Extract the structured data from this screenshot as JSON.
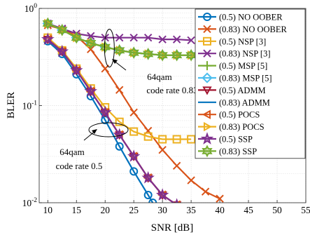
{
  "chart_data": {
    "type": "line",
    "xlabel": "SNR [dB]",
    "ylabel": "BLER",
    "xlim": [
      8.5,
      55
    ],
    "ylim": [
      0.01,
      1
    ],
    "yscale": "log",
    "x_ticks": [
      10,
      15,
      20,
      25,
      30,
      35,
      40,
      45,
      50,
      55
    ],
    "y_ticks": [
      {
        "value": 1,
        "base": "10",
        "exp": "0"
      },
      {
        "value": 0.1,
        "base": "10",
        "exp": "-1"
      },
      {
        "value": 0.01,
        "base": "10",
        "exp": "-2"
      }
    ],
    "grid": true,
    "legend_position": "top-right",
    "annotations": [
      {
        "lines": [
          "64qam",
          "code rate 0.83"
        ],
        "ellipse_center": [
          20.5,
          0.39
        ],
        "text_at": [
          26.5,
          0.16
        ]
      },
      {
        "lines": [
          "64qam",
          "code rate 0.5"
        ],
        "ellipse_center": [
          20.5,
          0.066
        ],
        "text_at": [
          15,
          0.029
        ]
      }
    ],
    "series": [
      {
        "name": "(0.5) NO OOBER",
        "color": "#0072BD",
        "marker": "circle",
        "x": [
          10,
          12.5,
          15,
          17.5,
          20,
          22.5,
          25,
          27.5,
          28.3
        ],
        "y": [
          0.46,
          0.34,
          0.21,
          0.125,
          0.071,
          0.038,
          0.021,
          0.012,
          0.01
        ]
      },
      {
        "name": "(0.83) NO OOBER",
        "color": "#D95319",
        "marker": "x",
        "x": [
          10,
          12.5,
          15,
          17.5,
          20,
          22.5,
          25,
          27.5,
          30,
          32.5,
          35,
          37.5,
          40
        ],
        "y": [
          0.67,
          0.61,
          0.52,
          0.38,
          0.24,
          0.145,
          0.085,
          0.055,
          0.035,
          0.024,
          0.017,
          0.013,
          0.011
        ]
      },
      {
        "name": "(0.5) NSP [3]",
        "color": "#EDB120",
        "marker": "square",
        "x": [
          10,
          12.5,
          15,
          17.5,
          20,
          22.5,
          25,
          27.5,
          30,
          32.5,
          35
        ],
        "y": [
          0.5,
          0.37,
          0.24,
          0.15,
          0.096,
          0.068,
          0.054,
          0.048,
          0.045,
          0.045,
          0.045
        ]
      },
      {
        "name": "(0.83) NSP [3]",
        "color": "#7E2F8E",
        "marker": "x",
        "x": [
          10,
          12.5,
          15,
          17.5,
          20,
          22.5,
          25,
          27.5,
          30,
          32.5,
          35
        ],
        "y": [
          0.7,
          0.62,
          0.55,
          0.52,
          0.5,
          0.5,
          0.5,
          0.5,
          0.48,
          0.48,
          0.47
        ]
      },
      {
        "name": "(0.5) MSP [5]",
        "color": "#77AC30",
        "marker": "plus",
        "x": [
          10,
          12.5,
          15,
          17.5,
          20,
          22.5,
          25,
          27.5,
          30,
          32.5,
          35
        ],
        "y": [
          0.7,
          0.6,
          0.5,
          0.44,
          0.4,
          0.37,
          0.35,
          0.34,
          0.33,
          0.33,
          0.33
        ]
      },
      {
        "name": "(0.83) MSP [5]",
        "color": "#4DBEEE",
        "marker": "diamond",
        "x": [
          10,
          12.5,
          15,
          17.5,
          20,
          22.5,
          25,
          27.5,
          30,
          32.5,
          35
        ],
        "y": [
          0.7,
          0.6,
          0.5,
          0.44,
          0.4,
          0.37,
          0.35,
          0.34,
          0.33,
          0.33,
          0.33
        ]
      },
      {
        "name": "(0.5) ADMM",
        "color": "#A2142F",
        "marker": "triangle-down",
        "x": [
          10,
          12.5,
          15,
          17.5,
          20,
          22.5,
          25,
          27.5,
          30,
          32.5
        ],
        "y": [
          0.48,
          0.36,
          0.23,
          0.14,
          0.085,
          0.05,
          0.03,
          0.018,
          0.012,
          0.0095
        ]
      },
      {
        "name": "(0.83) ADMM",
        "color": "#0072BD",
        "marker": "none",
        "x": [
          10,
          12.5,
          15,
          17.5,
          20,
          22.5,
          25,
          27.5,
          30,
          32.5,
          35
        ],
        "y": [
          0.7,
          0.6,
          0.5,
          0.44,
          0.4,
          0.37,
          0.35,
          0.34,
          0.33,
          0.33,
          0.33
        ]
      },
      {
        "name": "(0.5) POCS",
        "color": "#D95319",
        "marker": "triangle-left",
        "x": [
          10,
          12.5,
          15,
          17.5,
          20,
          22.5,
          25,
          27.5,
          30,
          32.5
        ],
        "y": [
          0.48,
          0.36,
          0.23,
          0.14,
          0.085,
          0.05,
          0.03,
          0.018,
          0.012,
          0.0095
        ]
      },
      {
        "name": "(0.83) POCS",
        "color": "#EDB120",
        "marker": "triangle-right",
        "x": [
          10,
          12.5,
          15,
          17.5,
          20,
          22.5,
          25,
          27.5,
          30,
          32.5,
          35
        ],
        "y": [
          0.7,
          0.6,
          0.5,
          0.44,
          0.4,
          0.37,
          0.35,
          0.34,
          0.33,
          0.33,
          0.33
        ]
      },
      {
        "name": "(0.5) SSP",
        "color": "#7E2F8E",
        "marker": "star",
        "x": [
          10,
          12.5,
          15,
          17.5,
          20,
          22.5,
          25,
          27.5,
          30,
          32.5
        ],
        "y": [
          0.48,
          0.36,
          0.23,
          0.14,
          0.085,
          0.05,
          0.03,
          0.018,
          0.012,
          0.0095
        ]
      },
      {
        "name": "(0.83) SSP",
        "color": "#77AC30",
        "marker": "hexagram",
        "x": [
          10,
          12.5,
          15,
          17.5,
          20,
          22.5,
          25,
          27.5,
          30,
          32.5,
          35
        ],
        "y": [
          0.7,
          0.6,
          0.5,
          0.44,
          0.4,
          0.37,
          0.35,
          0.34,
          0.33,
          0.33,
          0.33
        ]
      }
    ]
  }
}
